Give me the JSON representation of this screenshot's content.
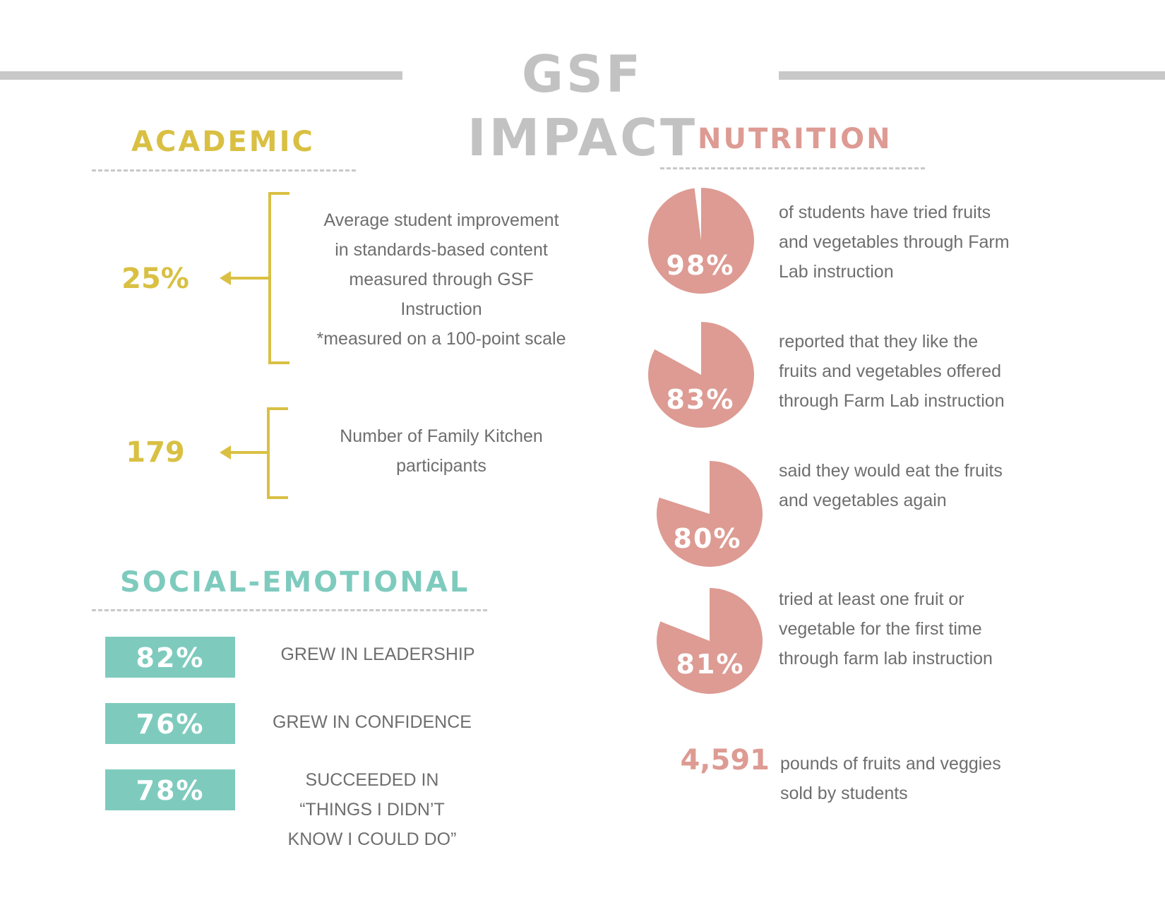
{
  "colors": {
    "title": "#c2c2c2",
    "academic": "#d9c043",
    "nutrition": "#dd9b93",
    "social": "#7ecbbe",
    "text": "#6e6e6e",
    "rule": "#c8c8c8"
  },
  "header": {
    "title": "GSF IMPACT"
  },
  "academic": {
    "heading": "ACADEMIC",
    "stats": [
      {
        "value": "25%",
        "lines": [
          "Average student improvement",
          "in standards-based content",
          "measured through GSF",
          "Instruction",
          "*measured on a 100-point scale"
        ]
      },
      {
        "value": "179",
        "lines": [
          "Number of Family Kitchen",
          "participants"
        ]
      }
    ]
  },
  "social": {
    "heading": "SOCIAL-EMOTIONAL",
    "items": [
      {
        "value": "82%",
        "lines": [
          "GREW IN LEADERSHIP"
        ]
      },
      {
        "value": "76%",
        "lines": [
          "GREW IN CONFIDENCE"
        ]
      },
      {
        "value": "78%",
        "lines": [
          "SUCCEEDED IN",
          "“THINGS I DIDN’T",
          "KNOW I COULD DO”"
        ]
      }
    ]
  },
  "nutrition": {
    "heading": "NUTRITION",
    "pies": [
      {
        "label": "98%",
        "percent": 98,
        "lines": [
          "of students have tried fruits",
          "and vegetables through Farm",
          "Lab instruction"
        ]
      },
      {
        "label": "83%",
        "percent": 83,
        "lines": [
          "reported that they like the",
          "fruits and vegetables offered",
          "through Farm Lab instruction"
        ]
      },
      {
        "label": "80%",
        "percent": 80,
        "lines": [
          "said they would eat the fruits",
          "and vegetables again"
        ]
      },
      {
        "label": "81%",
        "percent": 81,
        "lines": [
          "tried at least one fruit or",
          "vegetable for the first time",
          "through farm lab instruction"
        ]
      }
    ],
    "pounds": {
      "value": "4,591",
      "lines": [
        "pounds of fruits and veggies",
        "sold by students"
      ]
    }
  }
}
